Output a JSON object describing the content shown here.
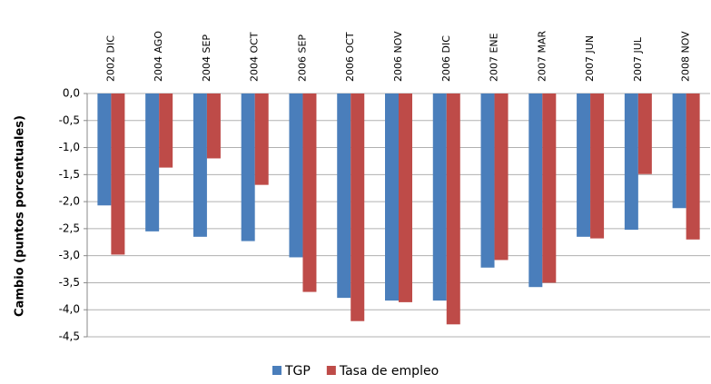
{
  "chart_data": {
    "type": "bar",
    "y_label": "Cambio (puntos porcentuales)",
    "categories": [
      "2002 DIC",
      "2004 AGO",
      "2004 SEP",
      "2004 OCT",
      "2006 SEP",
      "2006 OCT",
      "2006 NOV",
      "2006 DIC",
      "2007 ENE",
      "2007 MAR",
      "2007 JUN",
      "2007 JUL",
      "2008 NOV"
    ],
    "series": [
      {
        "name": "TGP",
        "color": "#4a7ebb",
        "values": [
          -2.07,
          -2.55,
          -2.65,
          -2.73,
          -3.03,
          -3.78,
          -3.83,
          -3.83,
          -3.22,
          -3.58,
          -2.65,
          -2.52,
          -2.12
        ]
      },
      {
        "name": "Tasa de empleo",
        "color": "#be4b48",
        "values": [
          -2.98,
          -1.37,
          -1.2,
          -1.69,
          -3.67,
          -4.21,
          -3.86,
          -4.27,
          -3.08,
          -3.5,
          -2.68,
          -1.49,
          -2.7
        ]
      }
    ],
    "ylim": [
      -4.5,
      0
    ],
    "yticks": [
      {
        "value": 0,
        "label": "0,0"
      },
      {
        "value": -0.5,
        "label": "-0,5"
      },
      {
        "value": -1,
        "label": "-1,0"
      },
      {
        "value": -1.5,
        "label": "-1,5"
      },
      {
        "value": -2,
        "label": "-2,0"
      },
      {
        "value": -2.5,
        "label": "-2,5"
      },
      {
        "value": -3,
        "label": "-3,0"
      },
      {
        "value": -3.5,
        "label": "-3,5"
      },
      {
        "value": -4,
        "label": "-4,0"
      },
      {
        "value": -4.5,
        "label": "-4,5"
      }
    ],
    "grid": true,
    "legend": "bottom"
  }
}
